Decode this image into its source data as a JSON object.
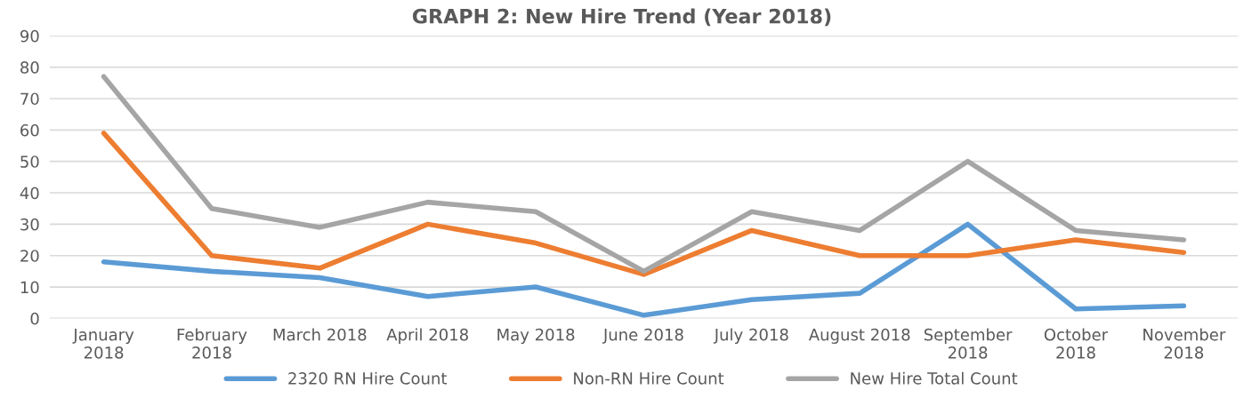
{
  "chart_data": {
    "type": "line",
    "title": "GRAPH 2: New Hire Trend (Year 2018)",
    "categories": [
      "January\n2018",
      "February\n2018",
      "March 2018",
      "April 2018",
      "May 2018",
      "June 2018",
      "July 2018",
      "August 2018",
      "September\n2018",
      "October\n2018",
      "November\n2018"
    ],
    "series": [
      {
        "name": "2320 RN Hire Count",
        "color": "#5b9bd5",
        "values": [
          18,
          15,
          13,
          7,
          10,
          1,
          6,
          8,
          30,
          3,
          4
        ]
      },
      {
        "name": "Non-RN Hire Count",
        "color": "#ed7d31",
        "values": [
          59,
          20,
          16,
          30,
          24,
          14,
          28,
          20,
          20,
          25,
          21
        ]
      },
      {
        "name": "New Hire Total Count",
        "color": "#a5a5a5",
        "values": [
          77,
          35,
          29,
          37,
          34,
          15,
          34,
          28,
          50,
          28,
          25
        ]
      }
    ],
    "ylim": [
      0,
      90
    ],
    "yticks": [
      0,
      10,
      20,
      30,
      40,
      50,
      60,
      70,
      80,
      90
    ],
    "grid": "y",
    "legend": "bottom",
    "marker": "none",
    "line_style": "solid"
  }
}
